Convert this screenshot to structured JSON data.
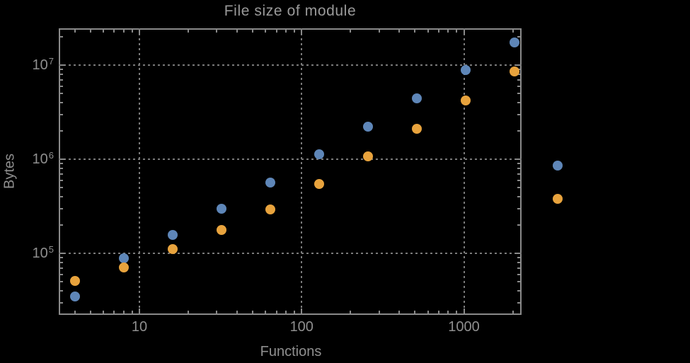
{
  "page": {
    "background_color": "#000000"
  },
  "chart_data": {
    "type": "scatter",
    "title": "File size of module",
    "xlabel": "Functions",
    "ylabel": "Bytes",
    "x_scale": "log",
    "y_scale": "log",
    "xlim": [
      3.2,
      2260
    ],
    "ylim": [
      22000,
      24500000
    ],
    "grid": "dotted gray lines at decade ticks, frame on all four sides with inward log minor ticks",
    "legend": false,
    "x_ticks": [
      {
        "value": 10,
        "label": "10"
      },
      {
        "value": 100,
        "label": "100"
      },
      {
        "value": 1000,
        "label": "1000"
      }
    ],
    "y_ticks": [
      {
        "value": 100000,
        "base": "10",
        "exp": "5",
        "label": "10^5"
      },
      {
        "value": 1000000,
        "base": "10",
        "exp": "6",
        "label": "10^6"
      },
      {
        "value": 10000000,
        "base": "10",
        "exp": "7",
        "label": "10^7"
      }
    ],
    "x": [
      4,
      8,
      16,
      32,
      64,
      128,
      256,
      512,
      1024,
      2048,
      3800
    ],
    "series": [
      {
        "name": "blue-series",
        "color": "#5e86b8",
        "values": [
          35000,
          88000,
          156000,
          296000,
          560000,
          1130000,
          2220000,
          4400000,
          8800000,
          17500000,
          860000
        ]
      },
      {
        "name": "orange-series",
        "color": "#e8a33d",
        "values": [
          51000,
          71000,
          110000,
          176000,
          295000,
          550000,
          1070000,
          2110000,
          4200000,
          8500000,
          380000
        ]
      }
    ],
    "colors": {
      "frame": "#8a8a8a",
      "grid": "#7a7a7a",
      "text": "#8f8f8f",
      "title": "#9a9a9a"
    },
    "note": "last data pair (x=3800) is drawn outside the right frame edge (plot range not clipped)"
  }
}
